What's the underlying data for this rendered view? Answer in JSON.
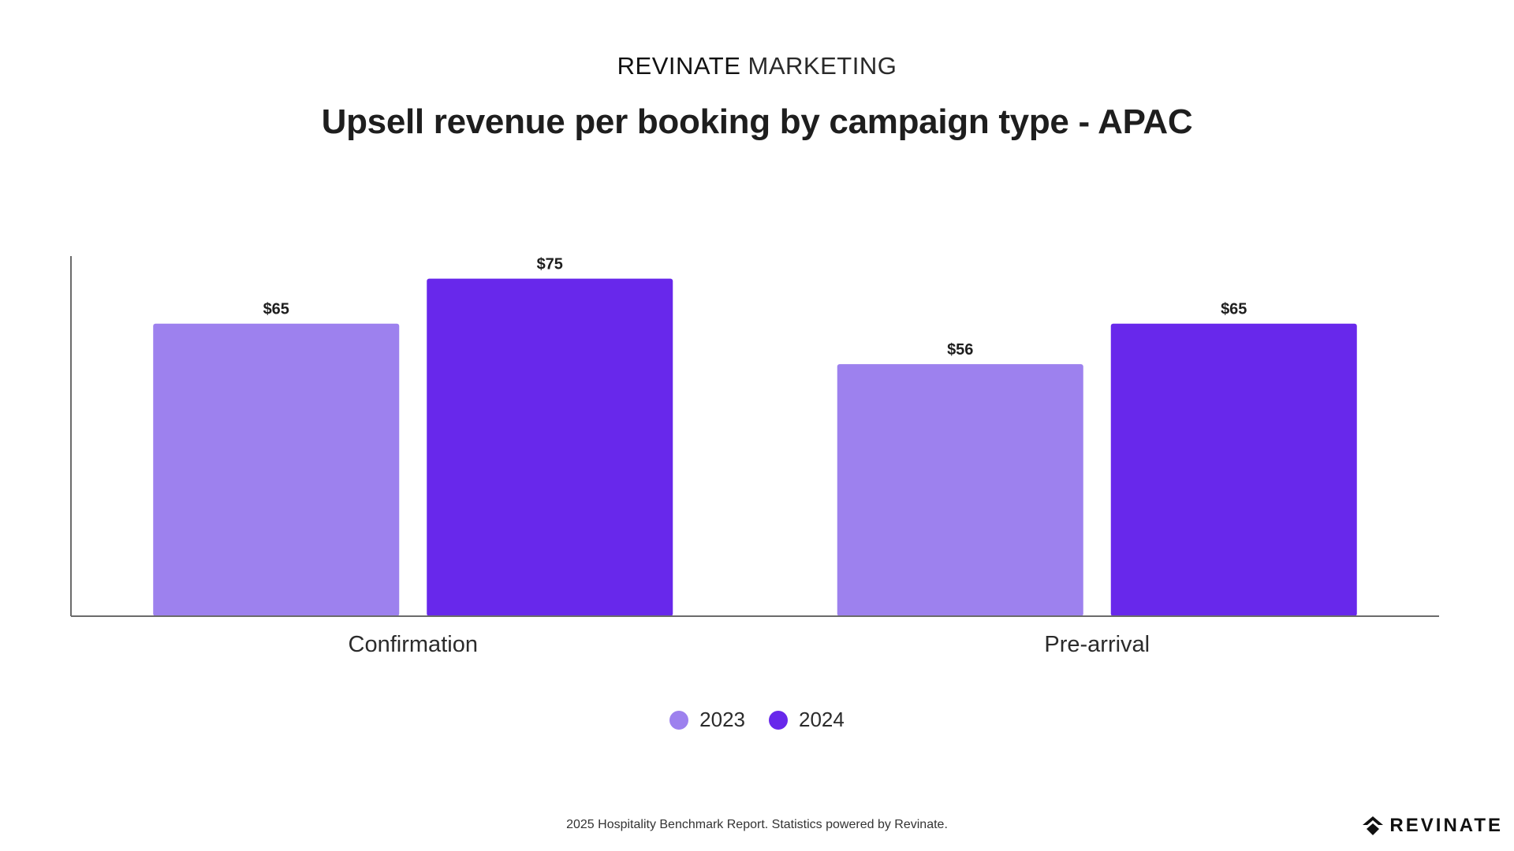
{
  "header": {
    "brand_strong": "REVINATE",
    "brand_light": "MARKETING"
  },
  "chart_data": {
    "type": "bar",
    "title": "Upsell revenue per booking by campaign type - APAC",
    "xlabel": "",
    "ylabel": "",
    "ylim": [
      0,
      80
    ],
    "categories": [
      "Confirmation",
      "Pre-arrival"
    ],
    "series": [
      {
        "name": "2023",
        "color": "#9d81ee",
        "values": [
          65,
          56
        ],
        "labels": [
          "$65",
          "$56"
        ]
      },
      {
        "name": "2024",
        "color": "#6828eb",
        "values": [
          75,
          65
        ],
        "labels": [
          "$75",
          "$65"
        ]
      }
    ],
    "grid": false,
    "legend": "bottom-center"
  },
  "footer": {
    "text": "2025 Hospitality Benchmark Report. Statistics powered by Revinate."
  },
  "logo": {
    "text": "REVINATE",
    "icon": "revinate-logo-icon"
  }
}
